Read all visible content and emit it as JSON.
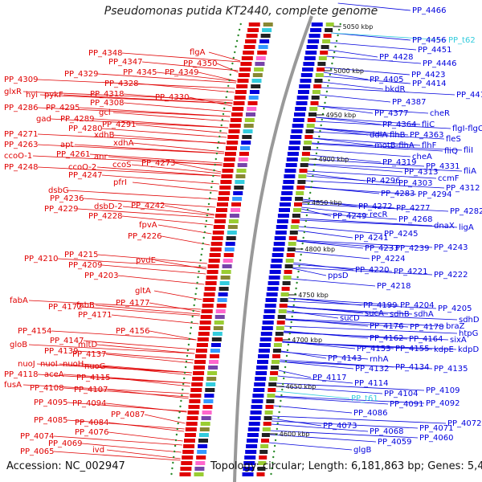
{
  "title": "Pseudomonas putida KT2440, complete genome",
  "accession_text": "Accession: NC_002947",
  "summary_text": "Topology: circular; Length: 6,181,863 bp; Genes: 5,446",
  "colors": {
    "forward": "#e00000",
    "reverse": "#0000dd",
    "rna": "#33ccdd",
    "backbone": "#999999"
  },
  "ticks": [
    "5050 kbp",
    "5000 kbp",
    "4950 kbp",
    "4900 kbp",
    "4850 kbp",
    "4800 kbp",
    "4750 kbp",
    "4700 kbp",
    "4650 kbp",
    "4600 kbp"
  ],
  "left_labels": [
    [
      "flgA",
      236,
      68
    ],
    [
      "PP_4348",
      110,
      69
    ],
    [
      "PP_4350",
      228,
      82
    ],
    [
      "PP_4347",
      135,
      80
    ],
    [
      "PP_4345",
      153,
      93
    ],
    [
      "PP_4349",
      205,
      93
    ],
    [
      "PP_4309",
      5,
      102
    ],
    [
      "PP_4329",
      80,
      95
    ],
    [
      "PP_4328",
      130,
      107
    ],
    [
      "PP_4318",
      112,
      120
    ],
    [
      "PP_4330",
      193,
      124
    ],
    [
      "glxR",
      5,
      117
    ],
    [
      "hyi",
      32,
      121
    ],
    [
      "pykF",
      55,
      121
    ],
    [
      "PP_4308",
      112,
      131
    ],
    [
      "PP_4286",
      5,
      137
    ],
    [
      "PP_4295",
      57,
      137
    ],
    [
      "gcl",
      123,
      143
    ],
    [
      "gad",
      45,
      151
    ],
    [
      "PP_4289",
      75,
      151
    ],
    [
      "PP_4291",
      127,
      158
    ],
    [
      "PP_4280",
      85,
      163
    ],
    [
      "xdhB",
      117,
      171
    ],
    [
      "xdhA",
      141,
      181
    ],
    [
      "PP_4271",
      5,
      170
    ],
    [
      "PP_4263",
      5,
      183
    ],
    [
      "apt",
      75,
      183
    ],
    [
      "PP_4261",
      70,
      195
    ],
    [
      "anr",
      117,
      198
    ],
    [
      "ccoO-1",
      5,
      197
    ],
    [
      "PP_4248",
      5,
      211
    ],
    [
      "ccoO-2",
      85,
      211
    ],
    [
      "ccoS",
      140,
      208
    ],
    [
      "PP_4273",
      176,
      206
    ],
    [
      "PP_4247",
      85,
      221
    ],
    [
      "pfrI",
      141,
      230
    ],
    [
      "dsbG",
      60,
      240
    ],
    [
      "PP_4236",
      62,
      250
    ],
    [
      "PP_4242",
      163,
      259
    ],
    [
      "PP_4229",
      55,
      263
    ],
    [
      "dsbD-2",
      117,
      260
    ],
    [
      "PP_4228",
      110,
      272
    ],
    [
      "PP_4226",
      159,
      297
    ],
    [
      "fpvA",
      173,
      283
    ],
    [
      "PP_4215",
      80,
      320
    ],
    [
      "PP_4210",
      30,
      325
    ],
    [
      "pvdE",
      169,
      327
    ],
    [
      "PP_4209",
      85,
      333
    ],
    [
      "PP_4203",
      105,
      346
    ],
    [
      "gltA",
      168,
      365
    ],
    [
      "fabA",
      12,
      377
    ],
    [
      "PP_4172",
      60,
      385
    ],
    [
      "fabB",
      95,
      383
    ],
    [
      "PP_4177",
      144,
      380
    ],
    [
      "PP_4171",
      97,
      395
    ],
    [
      "PP_4154",
      22,
      415
    ],
    [
      "PP_4156",
      144,
      415
    ],
    [
      "PP_4147",
      62,
      427
    ],
    [
      "gloB",
      12,
      432
    ],
    [
      "mltD",
      97,
      432
    ],
    [
      "PP_4139",
      55,
      440
    ],
    [
      "PP_4137",
      90,
      444
    ],
    [
      "nuoJ",
      22,
      456
    ],
    [
      "nuoI",
      50,
      456
    ],
    [
      "nuoH",
      78,
      456
    ],
    [
      "nuoG",
      105,
      459
    ],
    [
      "PP_4118",
      5,
      469
    ],
    [
      "aceA",
      55,
      469
    ],
    [
      "PP_4115",
      95,
      473
    ],
    [
      "fusA",
      5,
      482
    ],
    [
      "PP_4108",
      37,
      486
    ],
    [
      "PP_4107",
      92,
      488
    ],
    [
      "PP_4095",
      42,
      504
    ],
    [
      "PP_4094",
      90,
      505
    ],
    [
      "PP_4087",
      138,
      519
    ],
    [
      "PP_4085",
      42,
      526
    ],
    [
      "PP_4084",
      93,
      529
    ],
    [
      "PP_4074",
      25,
      546
    ],
    [
      "PP_4076",
      93,
      541
    ],
    [
      "PP_4069",
      60,
      555
    ],
    [
      "PP_4065",
      25,
      565
    ],
    [
      "ivd",
      115,
      563
    ]
  ],
  "right_labels": [
    [
      "PP_4466",
      513,
      16
    ],
    [
      "PP_4456",
      513,
      53
    ],
    [
      "PP_t62",
      558,
      53,
      "rna"
    ],
    [
      "PP_4451",
      520,
      65
    ],
    [
      "PP_4428",
      472,
      74
    ],
    [
      "PP_4446",
      526,
      82
    ],
    [
      "PP_4423",
      512,
      96
    ],
    [
      "PP_4405",
      460,
      102
    ],
    [
      "PP_4414",
      513,
      107
    ],
    [
      "PP_4417",
      568,
      121
    ],
    [
      "bkdR",
      479,
      114
    ],
    [
      "PP_4387",
      488,
      130
    ],
    [
      "PP_4377",
      466,
      144
    ],
    [
      "cheR",
      535,
      144
    ],
    [
      "PP_4364",
      476,
      158
    ],
    [
      "fliC",
      525,
      158
    ],
    [
      "flgI-flgC",
      563,
      163
    ],
    [
      "ddlA",
      460,
      171
    ],
    [
      "flhB",
      485,
      171
    ],
    [
      "PP_4363",
      510,
      171
    ],
    [
      "fleS",
      555,
      176
    ],
    [
      "motB-flhA",
      466,
      184
    ],
    [
      "flhF",
      525,
      184
    ],
    [
      "fliQ",
      553,
      191
    ],
    [
      "fliI",
      577,
      190
    ],
    [
      "cheA",
      513,
      198
    ],
    [
      "PP_4319",
      476,
      205
    ],
    [
      "PP_4331",
      530,
      210
    ],
    [
      "fliA",
      577,
      216
    ],
    [
      "PP_4313",
      503,
      217
    ],
    [
      "ccmF",
      545,
      225
    ],
    [
      "PP_4296",
      456,
      228
    ],
    [
      "PP_4303",
      496,
      231
    ],
    [
      "PP_4312",
      555,
      237
    ],
    [
      "PP_4283",
      474,
      244
    ],
    [
      "PP_4294",
      520,
      245
    ],
    [
      "PP_4272",
      446,
      260
    ],
    [
      "PP_4277",
      493,
      262
    ],
    [
      "PP_4282",
      560,
      266
    ],
    [
      "PP_4249",
      414,
      272
    ],
    [
      "recR",
      460,
      270
    ],
    [
      "PP_4268",
      496,
      276
    ],
    [
      "dnaX",
      540,
      284
    ],
    [
      "ligA",
      571,
      286
    ],
    [
      "PP_4245",
      478,
      294
    ],
    [
      "PP_4241",
      441,
      299
    ],
    [
      "PP_4233",
      454,
      312
    ],
    [
      "PP_4239",
      492,
      312
    ],
    [
      "PP_4243",
      540,
      311
    ],
    [
      "PP_4224",
      462,
      325
    ],
    [
      "PP_4220",
      442,
      339
    ],
    [
      "PP_4221",
      490,
      341
    ],
    [
      "PP_4222",
      540,
      345
    ],
    [
      "ppsD",
      408,
      346
    ],
    [
      "PP_4218",
      469,
      359
    ],
    [
      "PP_4199",
      452,
      383
    ],
    [
      "PP_4204",
      498,
      383
    ],
    [
      "PP_4205",
      545,
      387
    ],
    [
      "sucA",
      454,
      393
    ],
    [
      "sdhB",
      485,
      394
    ],
    [
      "sdhA",
      515,
      394
    ],
    [
      "sucD",
      423,
      399
    ],
    [
      "sdhD",
      571,
      401
    ],
    [
      "PP_4176",
      460,
      409
    ],
    [
      "PP_4178",
      510,
      410
    ],
    [
      "braZ",
      555,
      409
    ],
    [
      "htpG",
      571,
      418
    ],
    [
      "PP_4162",
      460,
      424
    ],
    [
      "PP_4164",
      509,
      425
    ],
    [
      "sixA",
      560,
      426
    ],
    [
      "PP_4153",
      444,
      437
    ],
    [
      "PP_4155",
      492,
      437
    ],
    [
      "kdpE",
      540,
      438
    ],
    [
      "kdpD",
      570,
      438
    ],
    [
      "rnhA",
      460,
      450
    ],
    [
      "PP_4143",
      408,
      449
    ],
    [
      "PP_4132",
      442,
      462
    ],
    [
      "PP_4134",
      492,
      460
    ],
    [
      "PP_4135",
      540,
      462
    ],
    [
      "PP_4117",
      389,
      473
    ],
    [
      "PP_4114",
      441,
      480
    ],
    [
      "PP_4104",
      478,
      493
    ],
    [
      "PP_4109",
      530,
      489
    ],
    [
      "PP_t61",
      437,
      499,
      "rna"
    ],
    [
      "PP_4091",
      485,
      506
    ],
    [
      "PP_4092",
      530,
      505
    ],
    [
      "PP_4086",
      440,
      517
    ],
    [
      "PP_4073",
      402,
      533
    ],
    [
      "PP_4068",
      460,
      540
    ],
    [
      "PP_4071",
      522,
      536
    ],
    [
      "PP_4072",
      557,
      530
    ],
    [
      "PP_4060",
      522,
      548
    ],
    [
      "PP_4059",
      470,
      553
    ],
    [
      "glgB",
      440,
      563
    ]
  ]
}
